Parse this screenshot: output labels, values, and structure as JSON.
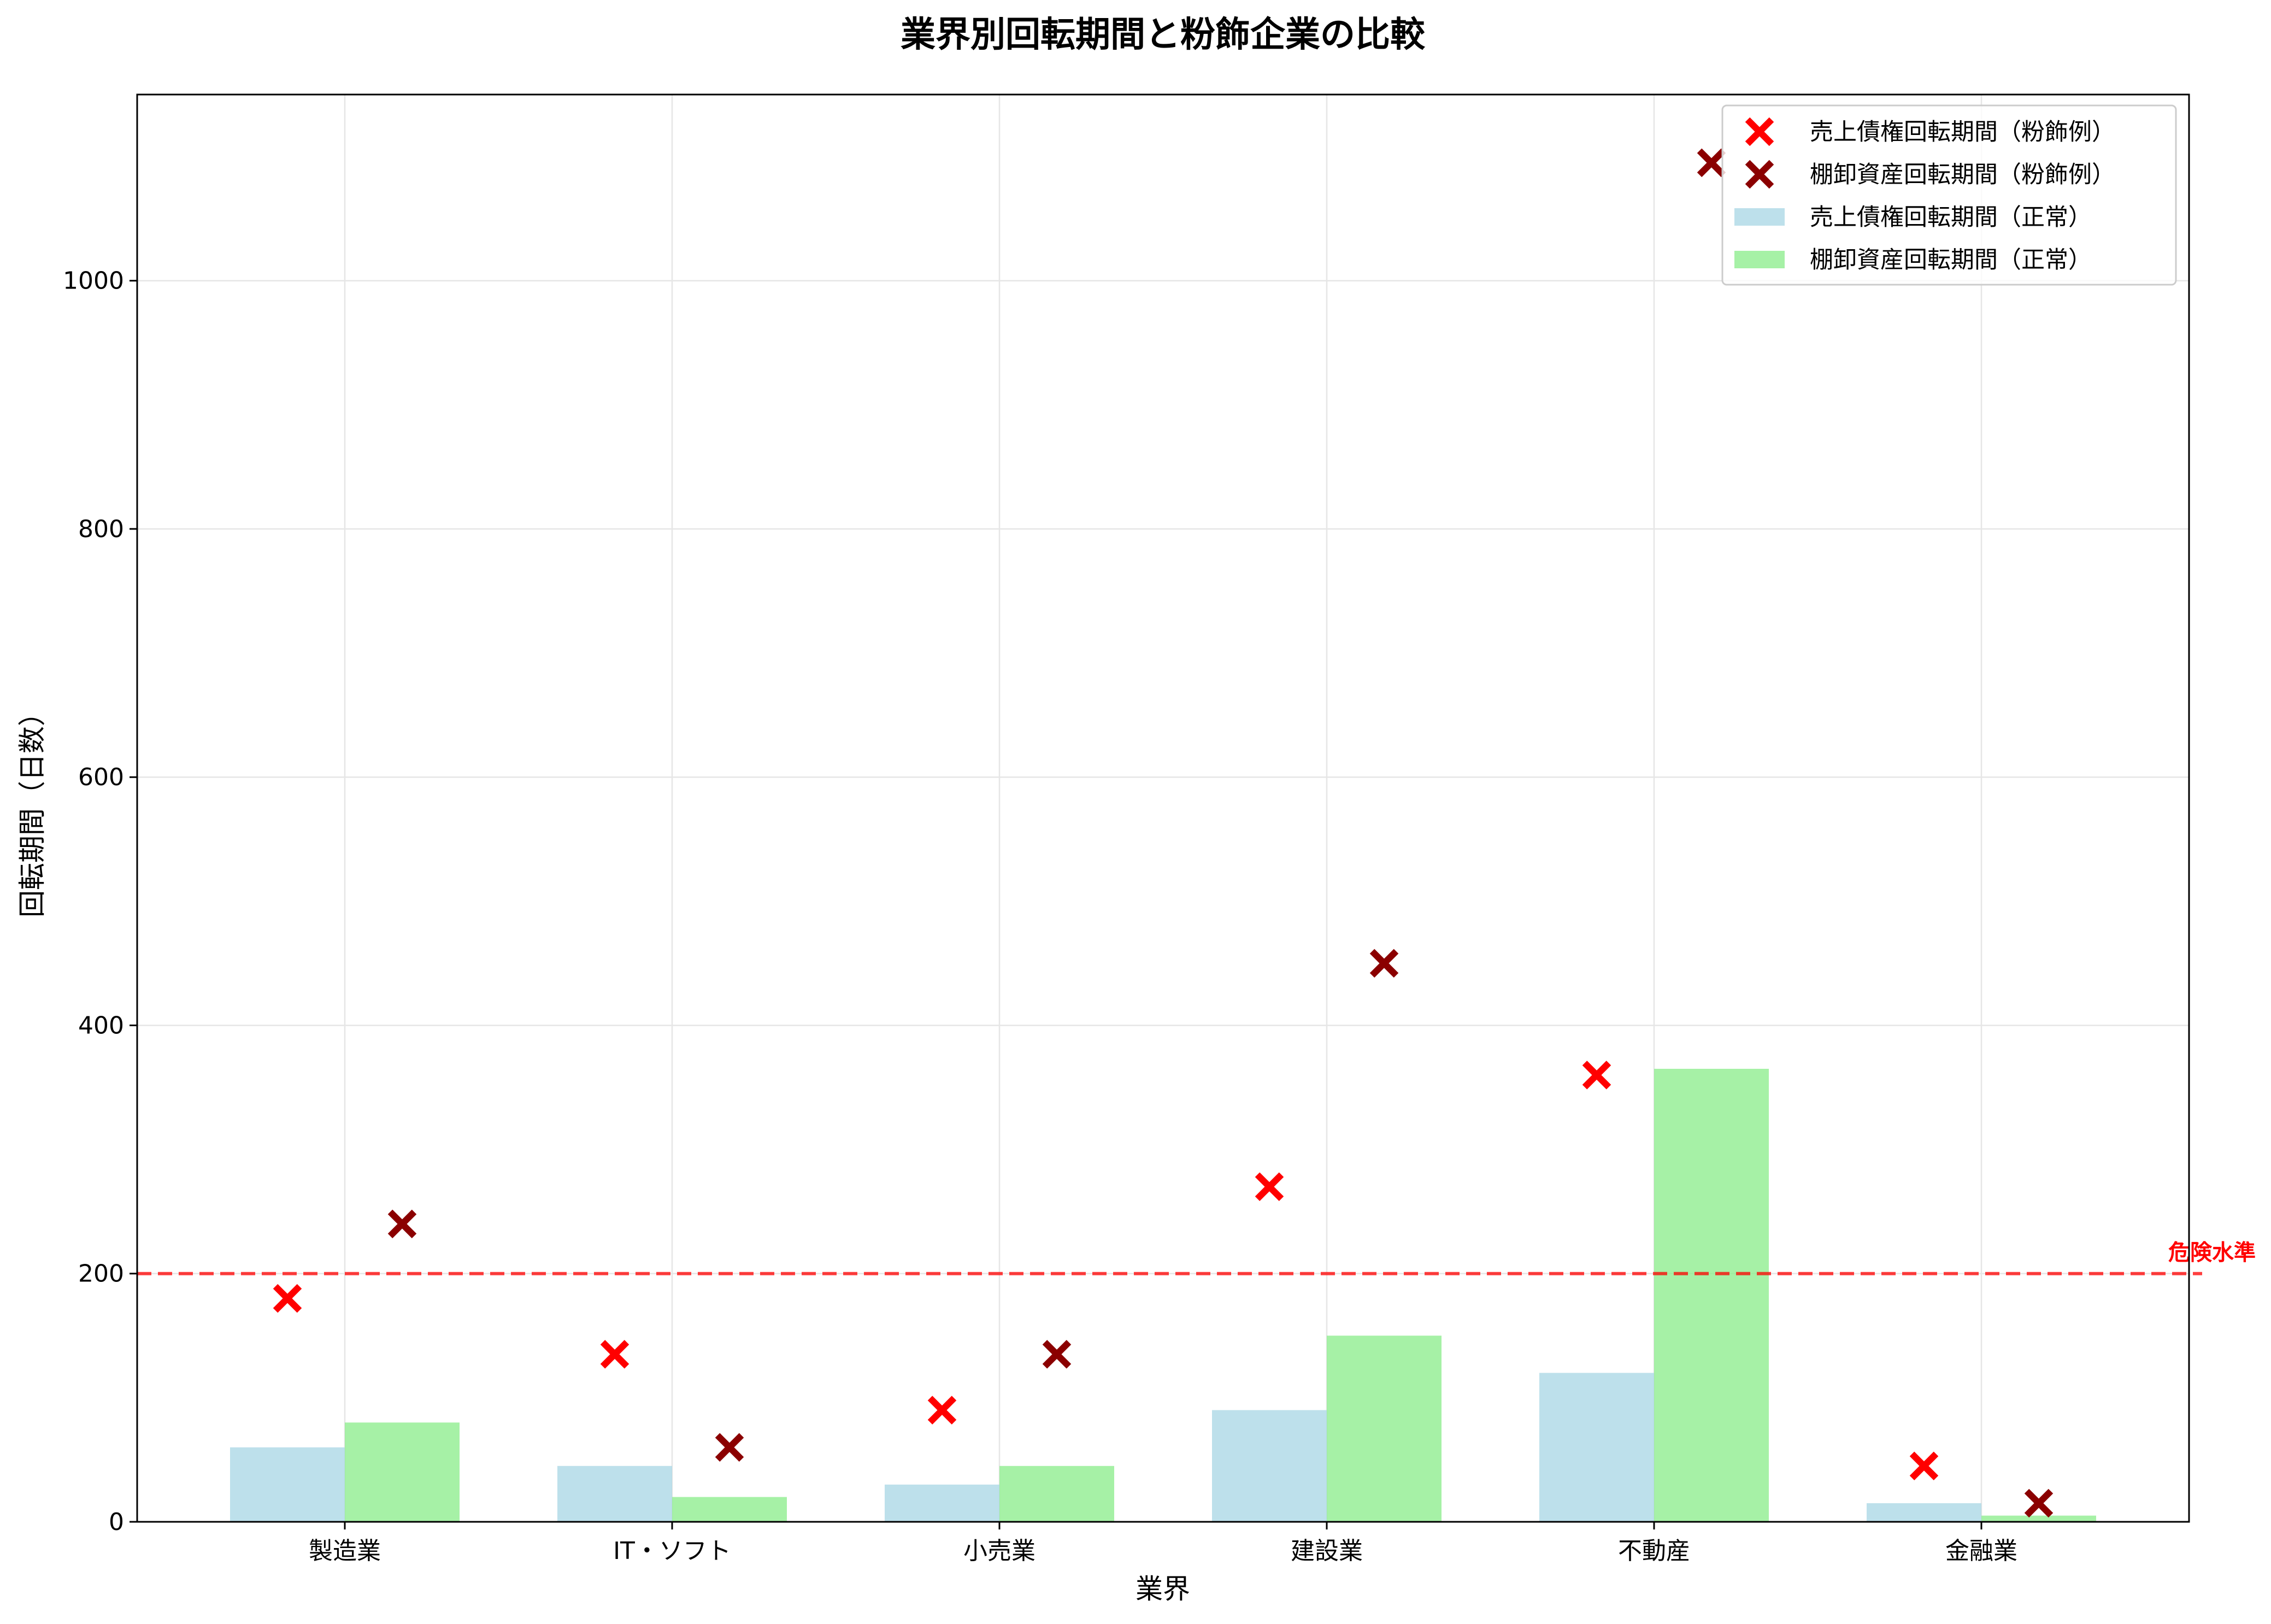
{
  "chart_data": {
    "type": "bar",
    "title": "業界別回転期間と粉飾企業の比較",
    "xlabel": "業界",
    "ylabel": "回転期間（日数）",
    "categories": [
      "製造業",
      "IT・ソフト",
      "小売業",
      "建設業",
      "不動産",
      "金融業"
    ],
    "ylim": [
      0,
      1150
    ],
    "yticks": [
      0,
      200,
      400,
      600,
      800,
      1000
    ],
    "grid": true,
    "legend_position": "top-right",
    "series": [
      {
        "name": "売上債権回転期間（正常）",
        "kind": "bar",
        "color": "#add8e6",
        "values": [
          60,
          45,
          30,
          90,
          120,
          15
        ]
      },
      {
        "name": "棚卸資産回転期間（正常）",
        "kind": "bar",
        "color": "#90ee90",
        "values": [
          80,
          20,
          45,
          150,
          365,
          5
        ]
      },
      {
        "name": "売上債権回転期間（粉飾例）",
        "kind": "marker",
        "color": "#ff0000",
        "values": [
          180,
          135,
          90,
          270,
          360,
          45
        ]
      },
      {
        "name": "棚卸資産回転期間（粉飾例）",
        "kind": "marker",
        "color": "#8b0000",
        "values": [
          240,
          60,
          135,
          450,
          1095,
          15
        ]
      }
    ],
    "reference_line": {
      "label": "危険水準",
      "value": 200,
      "color": "#ff0000",
      "style": "dashed"
    }
  }
}
